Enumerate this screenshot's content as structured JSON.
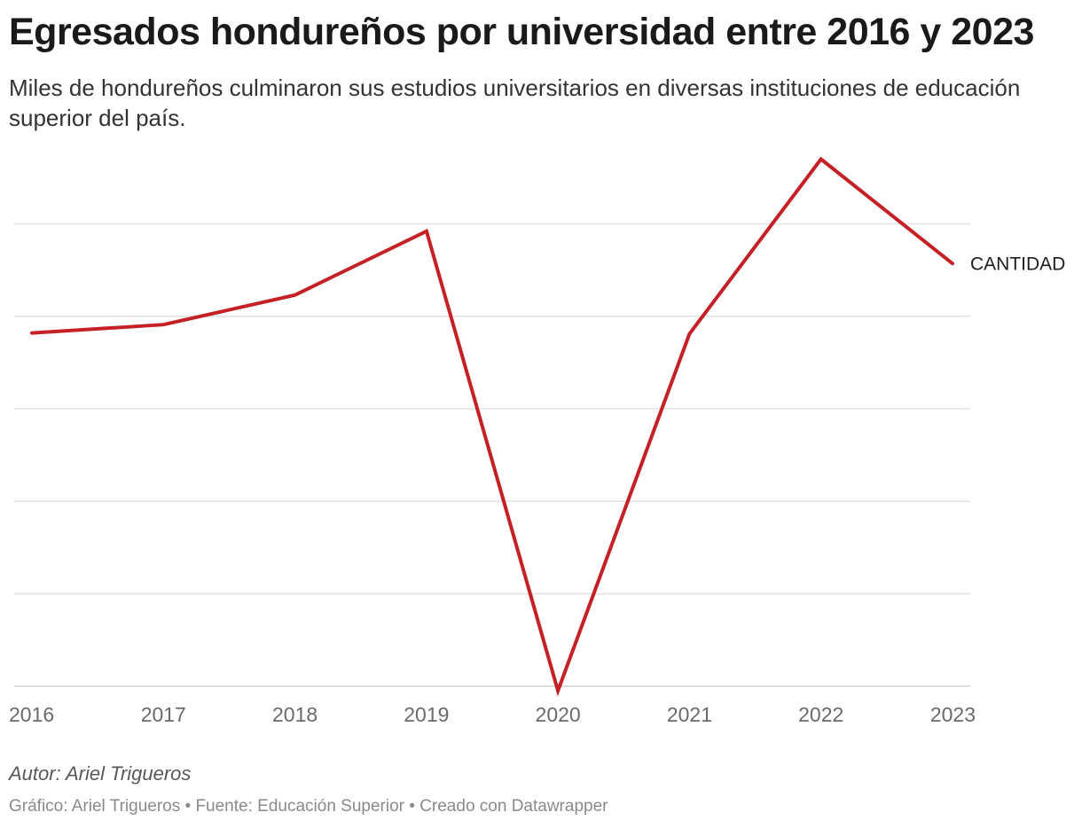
{
  "header": {
    "title": "Egresados hondureños por universidad entre 2016 y 2023",
    "subtitle": "Miles de hondureños culminaron sus estudios universitarios en diversas instituciones de educación superior del país."
  },
  "footer": {
    "author": "Autor: Ariel Trigueros",
    "credits": "Gráfico: Ariel Trigueros • Fuente: Educación Superior • Creado con Datawrapper"
  },
  "colors": {
    "series": "#c42026",
    "grid": "#e3e3e3"
  },
  "chart_data": {
    "type": "line",
    "title": "Egresados hondureños por universidad entre 2016 y 2023",
    "xlabel": "",
    "ylabel": "",
    "grid": true,
    "y_tick_labels_visible": false,
    "ylim": [
      0,
      6
    ],
    "y_gridlines": [
      0,
      1,
      2,
      3,
      4,
      5
    ],
    "categories": [
      "2016",
      "2017",
      "2018",
      "2019",
      "2020",
      "2021",
      "2022",
      "2023"
    ],
    "series": [
      {
        "name": "CANTIDAD",
        "values": [
          3.82,
          3.91,
          4.23,
          4.92,
          -0.05,
          3.81,
          5.7,
          4.57
        ]
      }
    ]
  }
}
